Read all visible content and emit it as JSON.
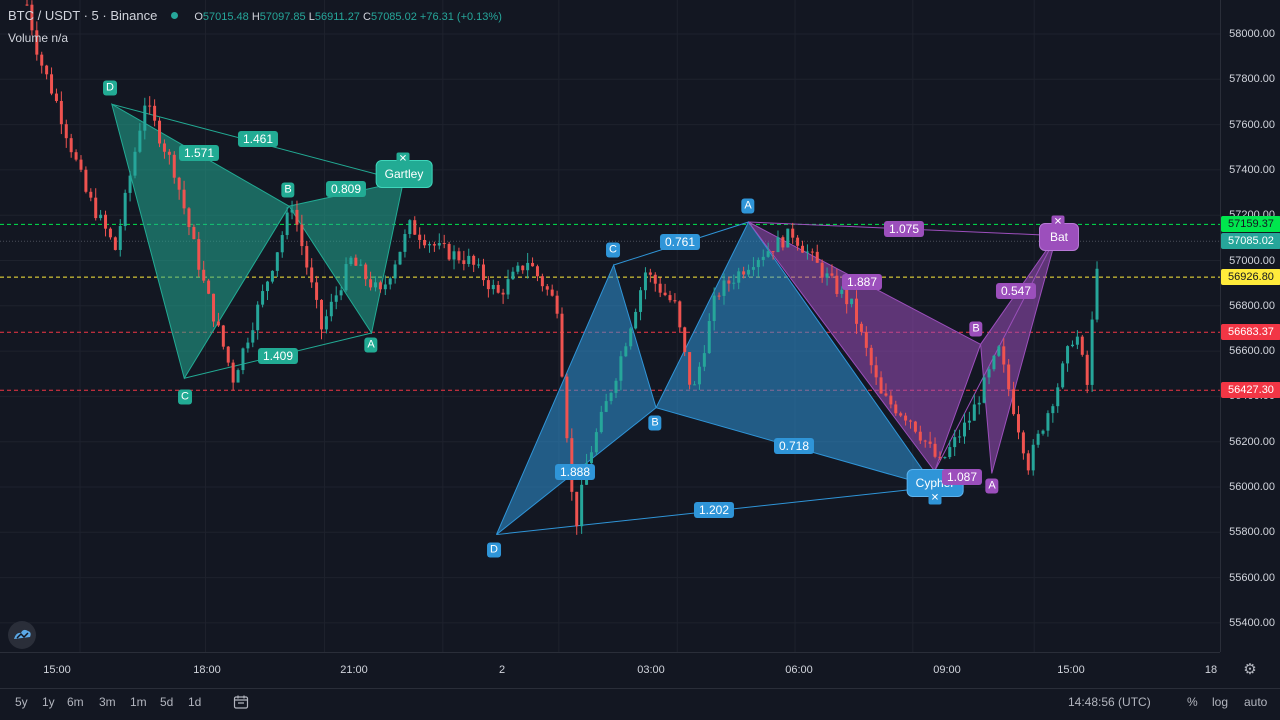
{
  "legend": {
    "symbol": "BTC / USDT · 5 · Binance",
    "open_key": "O",
    "open": "57015.48",
    "high_key": "H",
    "high": "57097.85",
    "low_key": "L",
    "low": "56911.27",
    "close_key": "C",
    "close": "57085.02",
    "change": "+76.31 (+0.13%)",
    "volume_label": "Volume",
    "volume_value": "n/a"
  },
  "price_axis": {
    "ticks": [
      "58000.00",
      "57800.00",
      "57600.00",
      "57400.00",
      "57200.00",
      "57000.00",
      "56800.00",
      "56600.00",
      "56400.00",
      "56200.00",
      "56000.00",
      "55800.00",
      "55600.00",
      "55400.00"
    ],
    "tags": [
      {
        "value": "57159.37",
        "bg": "#00e64d",
        "color": "#131722"
      },
      {
        "value": "57085.02",
        "bg": "#26a69a",
        "color": "#ffffff"
      },
      {
        "value": "56926.80",
        "bg": "#ffeb3b",
        "color": "#131722"
      },
      {
        "value": "56683.37",
        "bg": "#f23645",
        "color": "#ffffff"
      },
      {
        "value": "56427.30",
        "bg": "#f23645",
        "color": "#ffffff"
      }
    ]
  },
  "time_axis": [
    "15:00",
    "18:00",
    "21:00",
    "2",
    "03:00",
    "06:00",
    "09:00",
    "15:00",
    "18"
  ],
  "bottom_bar": {
    "ranges": [
      "5y",
      "1y",
      "6m",
      "3m",
      "1m",
      "5d",
      "1d"
    ],
    "compare_icon": "calendar-goto-icon",
    "time": "14:48:56 (UTC)",
    "percent": "%",
    "log": "log",
    "auto": "auto",
    "settings_icon": "gear-icon"
  },
  "colors": {
    "bg": "#131722",
    "up": "#26a69a",
    "down": "#ef5350",
    "gartley": "#22ab94",
    "cypher": "#2f95d8",
    "bat": "#9c4fbc",
    "line_green": "#00e64d",
    "line_yellow": "#ffeb3b",
    "line_red": "#f23645"
  },
  "patterns": {
    "gartley": {
      "name": "Gartley",
      "points": [
        "D",
        "C",
        "B",
        "A"
      ],
      "ratios": [
        "1.571",
        "1.461",
        "0.809",
        "1.409"
      ]
    },
    "cypher": {
      "name": "Cypher",
      "points": [
        "D",
        "C",
        "B",
        "A"
      ],
      "ratios": [
        "1.888",
        "0.761",
        "0.718",
        "1.202"
      ]
    },
    "bat": {
      "name": "Bat",
      "points": [
        "B",
        "A"
      ],
      "ratios": [
        "1.075",
        "1.887",
        "0.547",
        "1.087"
      ]
    }
  },
  "chart_data": {
    "type": "candlestick",
    "symbol": "BTC / USDT",
    "interval": "5",
    "exchange": "Binance",
    "ylim": [
      55300,
      58150
    ],
    "horizontal_lines": [
      57159.37,
      56926.8,
      56683.37,
      56427.3
    ],
    "last_price": 57085.02,
    "x_ticks": [
      "15:00",
      "18:00",
      "21:00",
      "2",
      "03:00",
      "06:00",
      "09:00",
      "15:00",
      "18"
    ],
    "price_path": [
      [
        0,
        58130
      ],
      [
        0.2,
        57900
      ],
      [
        0.5,
        57700
      ],
      [
        1.0,
        57300
      ],
      [
        1.5,
        57050
      ],
      [
        2.0,
        57700
      ],
      [
        2.5,
        57400
      ],
      [
        3.0,
        56900
      ],
      [
        3.5,
        56480
      ],
      [
        4.0,
        56850
      ],
      [
        4.5,
        57250
      ],
      [
        5.0,
        56700
      ],
      [
        5.5,
        57000
      ],
      [
        6.0,
        56850
      ],
      [
        6.5,
        57150
      ],
      [
        7.0,
        57050
      ],
      [
        7.5,
        57000
      ],
      [
        8.0,
        56850
      ],
      [
        8.5,
        57000
      ],
      [
        9.0,
        56800
      ],
      [
        9.3,
        55800
      ],
      [
        9.5,
        56100
      ],
      [
        10.0,
        56500
      ],
      [
        10.5,
        56950
      ],
      [
        11.0,
        56800
      ],
      [
        11.3,
        56400
      ],
      [
        11.7,
        56850
      ],
      [
        12.3,
        57000
      ],
      [
        13.0,
        57120
      ],
      [
        13.5,
        56950
      ],
      [
        14.0,
        56800
      ],
      [
        14.5,
        56400
      ],
      [
        15.0,
        56300
      ],
      [
        15.5,
        56100
      ],
      [
        16.0,
        56300
      ],
      [
        16.5,
        56600
      ],
      [
        17.0,
        56100
      ],
      [
        17.5,
        56450
      ],
      [
        17.8,
        56700
      ],
      [
        18.0,
        56450
      ],
      [
        18.2,
        57100
      ]
    ]
  }
}
